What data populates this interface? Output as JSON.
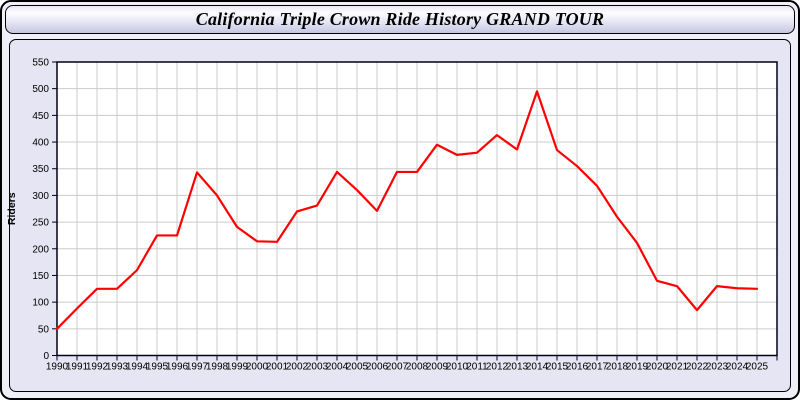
{
  "window": {
    "title": "California Triple Crown Ride History GRAND TOUR"
  },
  "chart_data": {
    "type": "line",
    "title": "California Triple Crown Ride History GRAND TOUR",
    "xlabel": "",
    "ylabel": "Riders",
    "x": [
      1990,
      1991,
      1992,
      1993,
      1994,
      1995,
      1996,
      1997,
      1998,
      1999,
      2000,
      2001,
      2002,
      2003,
      2004,
      2005,
      2006,
      2007,
      2008,
      2009,
      2010,
      2011,
      2012,
      2013,
      2014,
      2015,
      2016,
      2017,
      2018,
      2019,
      2020,
      2021,
      2022,
      2023,
      2024,
      2025
    ],
    "series": [
      {
        "name": "Riders",
        "color": "#FF0000",
        "values": [
          50,
          88,
          125,
          125,
          160,
          225,
          225,
          343,
          300,
          241,
          214,
          213,
          270,
          281,
          344,
          310,
          271,
          344,
          344,
          395,
          376,
          380,
          413,
          386,
          495,
          385,
          355,
          318,
          260,
          211,
          140,
          130,
          85,
          130,
          126,
          125
        ]
      }
    ],
    "ylim": [
      0,
      550
    ],
    "ytick_step": 50,
    "grid": true,
    "legend": "none",
    "plot_bg": "#FFFFFF",
    "grid_color": "#CCCCCC",
    "axis_color": "#000018",
    "panel_bg": "#E5E5F3"
  }
}
